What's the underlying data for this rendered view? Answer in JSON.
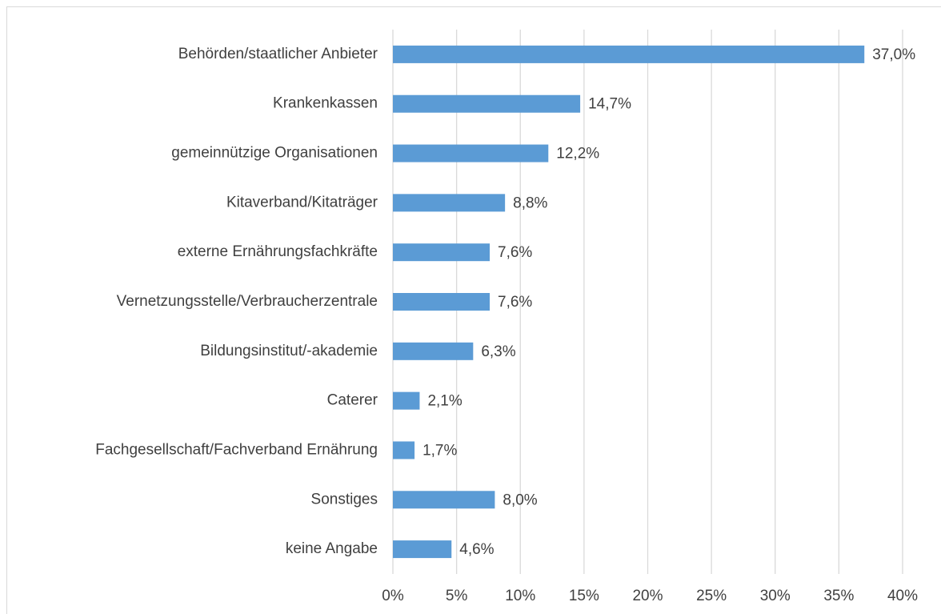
{
  "chart_data": {
    "type": "bar",
    "orientation": "horizontal",
    "categories": [
      "Behörden/staatlicher Anbieter",
      "Krankenkassen",
      "gemeinnützige Organisationen",
      "Kitaverband/Kitaträger",
      "externe Ernährungsfachkräfte",
      "Vernetzungsstelle/Verbraucherzentrale",
      "Bildungsinstitut/-akademie",
      "Caterer",
      "Fachgesellschaft/Fachverband Ernährung",
      "Sonstiges",
      "keine Angabe"
    ],
    "values": [
      37.0,
      14.7,
      12.2,
      8.8,
      7.6,
      7.6,
      6.3,
      2.1,
      1.7,
      8.0,
      4.6
    ],
    "value_labels": [
      "37,0%",
      "14,7%",
      "12,2%",
      "8,8%",
      "7,6%",
      "7,6%",
      "6,3%",
      "2,1%",
      "1,7%",
      "8,0%",
      "4,6%"
    ],
    "color": "#5b9bd5",
    "xlim": [
      0,
      40
    ],
    "xticks": [
      {
        "value": 0,
        "label": "0%"
      },
      {
        "value": 5,
        "label": "5%"
      },
      {
        "value": 10,
        "label": "10%"
      },
      {
        "value": 15,
        "label": "15%"
      },
      {
        "value": 20,
        "label": "20%"
      },
      {
        "value": 25,
        "label": "25%"
      },
      {
        "value": 30,
        "label": "30%"
      },
      {
        "value": 35,
        "label": "35%"
      },
      {
        "value": 40,
        "label": "40%"
      }
    ],
    "grid": true
  }
}
